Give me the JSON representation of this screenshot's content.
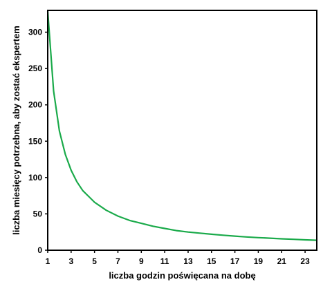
{
  "chart_data": {
    "type": "line",
    "title": "",
    "xlabel": "liczba godzin poświęcana na dobę",
    "ylabel": "liczba miesięcy potrzebna, aby zostać ekspertem",
    "xlim": [
      1,
      24
    ],
    "ylim": [
      0,
      330
    ],
    "x_ticks": [
      1,
      3,
      5,
      7,
      9,
      11,
      13,
      15,
      17,
      19,
      21,
      23
    ],
    "y_ticks": [
      0,
      50,
      100,
      150,
      200,
      250,
      300
    ],
    "grid": false,
    "legend": "none",
    "series": [
      {
        "color": "#1aaa4a",
        "x": [
          1,
          1.5,
          2,
          2.5,
          3,
          3.5,
          4,
          5,
          6,
          7,
          8,
          9,
          10,
          11,
          12,
          13,
          14,
          15,
          16,
          17,
          18,
          19,
          20,
          21,
          22,
          23,
          24
        ],
        "y": [
          329,
          219,
          164,
          132,
          110,
          94,
          82,
          66,
          55,
          47,
          41,
          37,
          33,
          30,
          27,
          25,
          23.5,
          22,
          20.6,
          19.4,
          18.3,
          17.3,
          16.5,
          15.7,
          15,
          14.3,
          13.7
        ]
      }
    ]
  }
}
